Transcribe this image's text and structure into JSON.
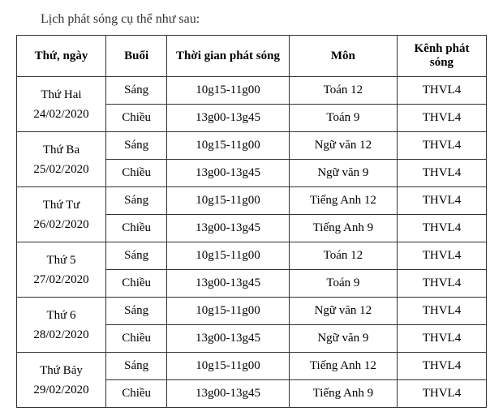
{
  "caption": "Lịch phát sóng cụ thể như sau:",
  "headers": {
    "day": "Thứ, ngày",
    "session": "Buổi",
    "time": "Thời gian phát sóng",
    "subject": "Môn",
    "channel": "Kênh phát sóng"
  },
  "rows": [
    {
      "day_name": "Thứ Hai",
      "date": "24/02/2020",
      "sessions": [
        {
          "session": "Sáng",
          "time": "10g15-11g00",
          "subject": "Toán 12",
          "channel": "THVL4"
        },
        {
          "session": "Chiều",
          "time": "13g00-13g45",
          "subject": "Toán 9",
          "channel": "THVL4"
        }
      ]
    },
    {
      "day_name": "Thứ Ba",
      "date": "25/02/2020",
      "sessions": [
        {
          "session": "Sáng",
          "time": "10g15-11g00",
          "subject": "Ngữ văn 12",
          "channel": "THVL4"
        },
        {
          "session": "Chiều",
          "time": "13g00-13g45",
          "subject": "Ngữ văn 9",
          "channel": "THVL4"
        }
      ]
    },
    {
      "day_name": "Thứ Tư",
      "date": "26/02/2020",
      "sessions": [
        {
          "session": "Sáng",
          "time": "10g15-11g00",
          "subject": "Tiếng Anh 12",
          "channel": "THVL4"
        },
        {
          "session": "Chiều",
          "time": "13g00-13g45",
          "subject": "Tiếng Anh 9",
          "channel": "THVL4"
        }
      ]
    },
    {
      "day_name": "Thứ 5",
      "date": "27/02/2020",
      "sessions": [
        {
          "session": "Sáng",
          "time": "10g15-11g00",
          "subject": "Toán 12",
          "channel": "THVL4"
        },
        {
          "session": "Chiều",
          "time": "13g00-13g45",
          "subject": "Toán 9",
          "channel": "THVL4"
        }
      ]
    },
    {
      "day_name": "Thứ 6",
      "date": "28/02/2020",
      "sessions": [
        {
          "session": "Sáng",
          "time": "10g15-11g00",
          "subject": "Ngữ văn 12",
          "channel": "THVL4"
        },
        {
          "session": "Chiều",
          "time": "13g00-13g45",
          "subject": "Ngữ văn 9",
          "channel": "THVL4"
        }
      ]
    },
    {
      "day_name": "Thứ Bảy",
      "date": "29/02/2020",
      "sessions": [
        {
          "session": "Sáng",
          "time": "10g15-11g00",
          "subject": "Tiếng Anh 12",
          "channel": "THVL4"
        },
        {
          "session": "Chiều",
          "time": "13g00-13g45",
          "subject": "Tiếng Anh 9",
          "channel": "THVL4"
        }
      ]
    }
  ],
  "styling": {
    "font_family": "Times New Roman",
    "background_color": "#ffffff",
    "border_color": "#333333",
    "text_color": "#333333",
    "header_font_weight": "bold",
    "cell_font_size": 15,
    "caption_font_size": 16
  }
}
